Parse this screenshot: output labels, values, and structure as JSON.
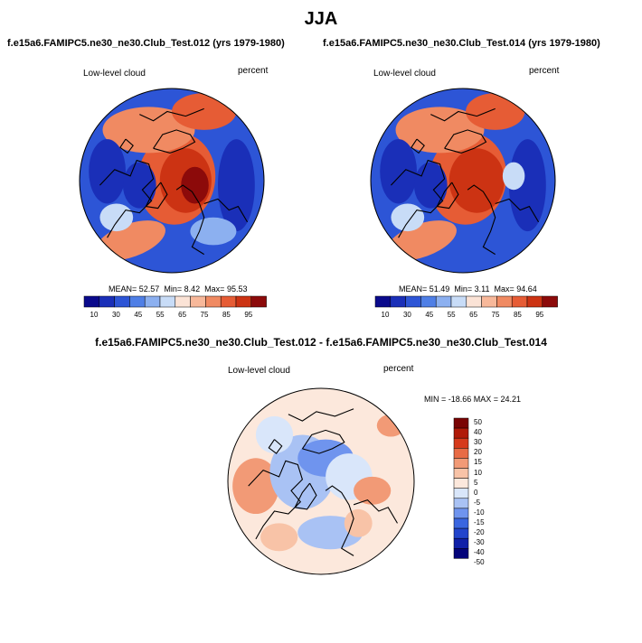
{
  "title": "JJA",
  "panels": [
    {
      "case_title": "f.e15a6.FAMIPC5.ne30_ne30.Club_Test.012 (yrs 1979-1980)",
      "left_label": "Low-level cloud",
      "right_label": "percent",
      "mean_label": "MEAN=",
      "mean": "52.57",
      "min_label": "Min=",
      "min": "8.42",
      "max_label": "Max=",
      "max": "95.53"
    },
    {
      "case_title": "f.e15a6.FAMIPC5.ne30_ne30.Club_Test.014 (yrs 1979-1980)",
      "left_label": "Low-level cloud",
      "right_label": "percent",
      "mean_label": "MEAN=",
      "mean": "51.49",
      "min_label": "Min=",
      "min": "3.11",
      "max_label": "Max=",
      "max": "94.64"
    }
  ],
  "diff": {
    "title": "f.e15a6.FAMIPC5.ne30_ne30.Club_Test.012 - f.e15a6.FAMIPC5.ne30_ne30.Club_Test.014",
    "left_label": "Low-level cloud",
    "right_label": "percent",
    "stats": "MIN = -18.66 MAX =  24.21"
  },
  "colors": {
    "abs_scale": [
      "#0a0a8c",
      "#1a2fb8",
      "#2d55d6",
      "#4f7fe6",
      "#8cb0f0",
      "#c8dcf7",
      "#fbe3d6",
      "#f7b89a",
      "#f08a62",
      "#e65c35",
      "#cc3313",
      "#8c0a0a"
    ],
    "diff_scale": [
      "#04047a",
      "#1020a8",
      "#2244cc",
      "#3a66e0",
      "#6f94ee",
      "#a9c2f4",
      "#d9e6fa",
      "#fce8dc",
      "#f8c3a7",
      "#f29a76",
      "#e86b45",
      "#d63a1c",
      "#b01a08",
      "#7a0404"
    ]
  },
  "chart_data": [
    {
      "type": "heatmap",
      "title": "Low-level cloud",
      "projection": "polar stereographic, north",
      "units": "percent",
      "legend_ticks": [
        "10",
        "30",
        "45",
        "55",
        "65",
        "75",
        "85",
        "95"
      ],
      "stats": {
        "mean": 52.57,
        "min": 8.42,
        "max": 95.53
      }
    },
    {
      "type": "heatmap",
      "title": "Low-level cloud",
      "projection": "polar stereographic, north",
      "units": "percent",
      "legend_ticks": [
        "10",
        "30",
        "45",
        "55",
        "65",
        "75",
        "85",
        "95"
      ],
      "stats": {
        "mean": 51.49,
        "min": 3.11,
        "max": 94.64
      }
    },
    {
      "type": "heatmap",
      "title": "Low-level cloud difference",
      "projection": "polar stereographic, north",
      "units": "percent",
      "legend_ticks": [
        "50",
        "40",
        "30",
        "20",
        "15",
        "10",
        "5",
        "0",
        "-5",
        "-10",
        "-15",
        "-20",
        "-30",
        "-40",
        "-50"
      ],
      "stats": {
        "min": -18.66,
        "max": 24.21
      }
    }
  ]
}
